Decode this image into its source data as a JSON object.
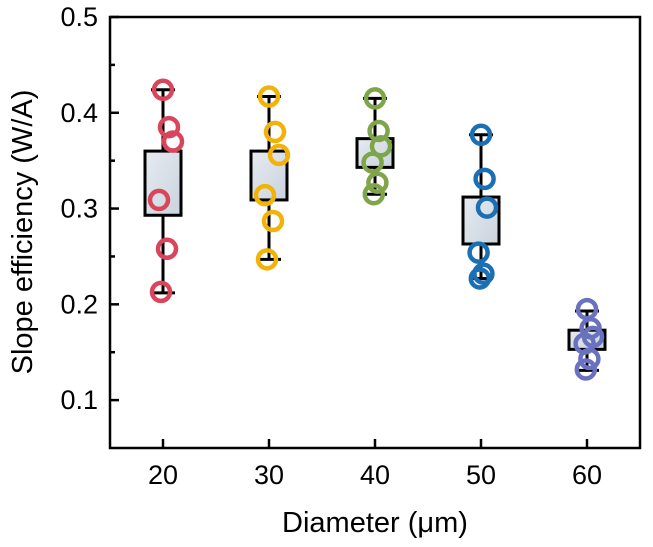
{
  "chart_data": {
    "type": "box",
    "xlabel": "Diameter (μm)",
    "ylabel": "Slope efficiency (W/A)",
    "categories": [
      "20",
      "30",
      "40",
      "50",
      "60"
    ],
    "ylim": [
      0.05,
      0.5
    ],
    "yticks": [
      "0.1",
      "0.2",
      "0.3",
      "0.4",
      "0.5"
    ],
    "grid": false,
    "series": [
      {
        "category": "20",
        "color": "#d9455a",
        "points": [
          0.424,
          0.385,
          0.37,
          0.309,
          0.258,
          0.213
        ],
        "box": [
          0.293,
          0.36
        ],
        "whiskers": [
          0.212,
          0.424
        ]
      },
      {
        "category": "30",
        "color": "#f2b207",
        "points": [
          0.417,
          0.38,
          0.356,
          0.314,
          0.287,
          0.247
        ],
        "box": [
          0.309,
          0.36
        ],
        "whiskers": [
          0.247,
          0.417
        ]
      },
      {
        "category": "40",
        "color": "#7fa54b",
        "points": [
          0.415,
          0.381,
          0.365,
          0.348,
          0.327,
          0.315
        ],
        "box": [
          0.343,
          0.373
        ],
        "whiskers": [
          0.315,
          0.415
        ]
      },
      {
        "category": "50",
        "color": "#1b6fb4",
        "points": [
          0.377,
          0.331,
          0.301,
          0.254,
          0.232,
          0.227
        ],
        "box": [
          0.263,
          0.312
        ],
        "whiskers": [
          0.227,
          0.377
        ]
      },
      {
        "category": "60",
        "color": "#6a72bf",
        "points": [
          0.195,
          0.175,
          0.166,
          0.159,
          0.143,
          0.132
        ],
        "box": [
          0.153,
          0.173
        ],
        "whiskers": [
          0.131,
          0.193
        ]
      }
    ]
  }
}
